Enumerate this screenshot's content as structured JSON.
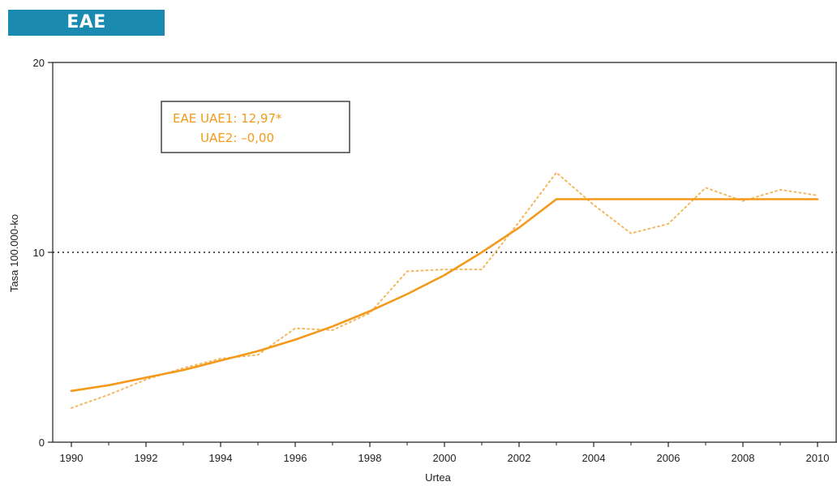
{
  "header": {
    "title": "EAE"
  },
  "chart_data": {
    "type": "line",
    "title": "",
    "xlabel": "Urtea",
    "ylabel": "Tasa 100.000-ko",
    "xlim": [
      1990,
      2010
    ],
    "ylim": [
      0,
      20
    ],
    "x_ticks": [
      "1990",
      "1992",
      "1994",
      "1996",
      "1998",
      "2000",
      "2002",
      "2004",
      "2006",
      "2008",
      "2010"
    ],
    "y_ticks": [
      "0",
      "10",
      "20"
    ],
    "reference_line": {
      "y": 10,
      "style": "dotted",
      "color": "#222222"
    },
    "series": [
      {
        "style": "dotted",
        "color": "#f5b860",
        "x": [
          1990,
          1991,
          1992,
          1993,
          1994,
          1995,
          1996,
          1997,
          1998,
          1999,
          2000,
          2001,
          2002,
          2003,
          2004,
          2005,
          2006,
          2007,
          2008,
          2009,
          2010
        ],
        "values": [
          1.8,
          2.5,
          3.3,
          3.9,
          4.4,
          4.6,
          6.0,
          5.9,
          6.8,
          9.0,
          9.1,
          9.1,
          11.6,
          14.2,
          12.5,
          11.0,
          11.5,
          13.4,
          12.7,
          13.3,
          13.0
        ]
      },
      {
        "style": "solid",
        "color": "#f39a1a",
        "x": [
          1990,
          1991,
          1992,
          1993,
          1994,
          1995,
          1996,
          1997,
          1998,
          1999,
          2000,
          2001,
          2002,
          2003,
          2004,
          2005,
          2006,
          2007,
          2008,
          2009,
          2010
        ],
        "values": [
          2.7,
          3.0,
          3.4,
          3.8,
          4.3,
          4.8,
          5.4,
          6.1,
          6.9,
          7.8,
          8.8,
          10.0,
          11.3,
          12.8,
          12.8,
          12.8,
          12.8,
          12.8,
          12.8,
          12.8,
          12.8
        ]
      }
    ],
    "annotation": {
      "line1": "EAE UAE1: 12,97*",
      "line2": "UAE2: –0,00",
      "color": "#f39a1a"
    }
  }
}
